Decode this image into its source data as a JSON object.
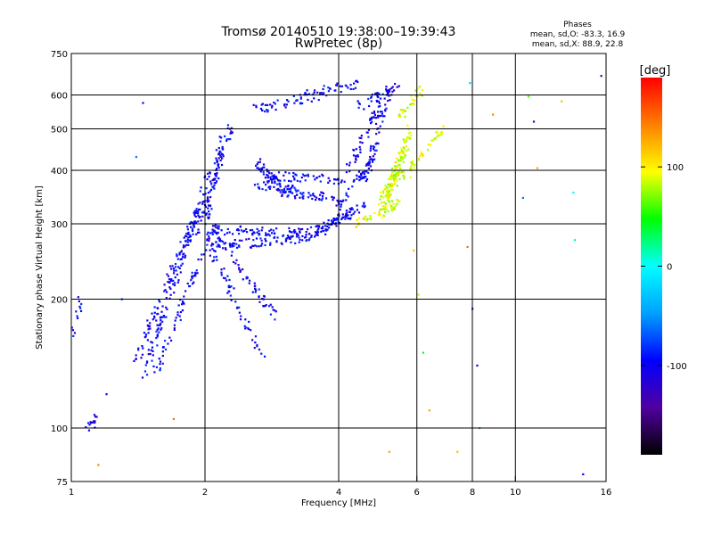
{
  "chart_data": {
    "type": "scatter",
    "title": "Tromsø 20140510 19:38:00–19:39:43",
    "subtitle": "RwPretec (8p)",
    "annotation_title": "Phases",
    "annotation_lines": [
      "mean, sd,O: -83.3, 16.9",
      "mean, sd,X: 88.9, 22.8"
    ],
    "xlabel": "Frequency [MHz]",
    "ylabel": "Stationary phase Virtual Height [km]",
    "x_scale": "log",
    "y_scale": "log",
    "xlim": [
      1,
      16
    ],
    "ylim": [
      75,
      750
    ],
    "x_ticks": [
      1,
      2,
      4,
      6,
      8,
      10,
      16
    ],
    "x_tick_labels": [
      "1",
      "2",
      "4",
      "6",
      "8",
      "10",
      "16"
    ],
    "y_ticks": [
      75,
      100,
      200,
      300,
      400,
      500,
      600,
      750
    ],
    "y_tick_labels": [
      "75",
      "100",
      "200",
      "300",
      "400",
      "500",
      "600",
      "750"
    ],
    "x_gridlines": [
      2,
      4,
      6,
      8,
      10
    ],
    "y_gridlines": [
      100,
      200,
      300,
      400,
      500,
      600
    ],
    "grid": true,
    "colorbar": {
      "label": "[deg]",
      "range": [
        -190,
        190
      ],
      "ticks": [
        100,
        0,
        -100
      ],
      "tick_labels": [
        "100",
        "0",
        "-100"
      ],
      "colors": [
        "#000000",
        "#5000a0",
        "#0000ff",
        "#00a0ff",
        "#00ffff",
        "#00ff00",
        "#ffff00",
        "#ff8000",
        "#ff0000"
      ]
    },
    "series": [
      {
        "polarity": "O",
        "color_value": -100,
        "traces": [
          {
            "f0": 1.45,
            "f1": 2.05,
            "h0": 130,
            "h1": 400,
            "n": 40
          },
          {
            "f0": 1.4,
            "f1": 1.95,
            "h0": 145,
            "h1": 330,
            "n": 30
          },
          {
            "f0": 1.55,
            "f1": 2.1,
            "h0": 135,
            "h1": 300,
            "n": 25
          },
          {
            "f0": 2.05,
            "f1": 2.9,
            "h0": 300,
            "h1": 180,
            "n": 20
          },
          {
            "f0": 2.0,
            "f1": 2.7,
            "h0": 280,
            "h1": 145,
            "n": 18
          },
          {
            "f0": 1.9,
            "f1": 2.3,
            "h0": 280,
            "h1": 520,
            "n": 22
          },
          {
            "f0": 2.0,
            "f1": 2.2,
            "h0": 300,
            "h1": 480,
            "n": 16
          },
          {
            "f0": 2.05,
            "f1": 3.5,
            "h0": 265,
            "h1": 280,
            "n": 28
          },
          {
            "f0": 3.5,
            "f1": 4.3,
            "h0": 280,
            "h1": 320,
            "n": 16
          },
          {
            "f0": 2.1,
            "f1": 3.4,
            "h0": 290,
            "h1": 285,
            "n": 24
          },
          {
            "f0": 3.4,
            "f1": 4.6,
            "h0": 285,
            "h1": 330,
            "n": 18
          },
          {
            "f0": 2.6,
            "f1": 3.0,
            "h0": 420,
            "h1": 355,
            "n": 14
          },
          {
            "f0": 3.0,
            "f1": 3.9,
            "h0": 355,
            "h1": 345,
            "n": 16
          },
          {
            "f0": 2.6,
            "f1": 3.2,
            "h0": 370,
            "h1": 360,
            "n": 12
          },
          {
            "f0": 2.7,
            "f1": 4.1,
            "h0": 390,
            "h1": 380,
            "n": 20
          },
          {
            "f0": 4.0,
            "f1": 4.8,
            "h0": 330,
            "h1": 430,
            "n": 16
          },
          {
            "f0": 4.2,
            "f1": 5.0,
            "h0": 400,
            "h1": 580,
            "n": 18
          },
          {
            "f0": 4.6,
            "f1": 5.2,
            "h0": 380,
            "h1": 620,
            "n": 18
          },
          {
            "f0": 4.4,
            "f1": 5.5,
            "h0": 560,
            "h1": 640,
            "n": 12
          },
          {
            "f0": 2.6,
            "f1": 3.6,
            "h0": 555,
            "h1": 600,
            "n": 16
          },
          {
            "f0": 3.4,
            "f1": 4.4,
            "h0": 600,
            "h1": 640,
            "n": 12
          },
          {
            "f0": 1.08,
            "f1": 1.15,
            "h0": 100,
            "h1": 106,
            "n": 5
          },
          {
            "f0": 1.0,
            "f1": 1.05,
            "h0": 165,
            "h1": 200,
            "n": 5
          }
        ]
      },
      {
        "polarity": "X",
        "color_value": 90,
        "traces": [
          {
            "f0": 4.4,
            "f1": 5.6,
            "h0": 300,
            "h1": 340,
            "n": 18
          },
          {
            "f0": 5.0,
            "f1": 5.7,
            "h0": 340,
            "h1": 460,
            "n": 20
          },
          {
            "f0": 5.2,
            "f1": 5.8,
            "h0": 360,
            "h1": 500,
            "n": 18
          },
          {
            "f0": 5.6,
            "f1": 6.8,
            "h0": 380,
            "h1": 500,
            "n": 14
          },
          {
            "f0": 5.5,
            "f1": 6.2,
            "h0": 540,
            "h1": 620,
            "n": 10
          },
          {
            "f0": 5.0,
            "f1": 5.6,
            "h0": 330,
            "h1": 410,
            "n": 12
          }
        ]
      }
    ],
    "isolated_points": [
      {
        "f": 1.45,
        "h": 575,
        "v": -95
      },
      {
        "f": 1.4,
        "h": 430,
        "v": -60
      },
      {
        "f": 1.3,
        "h": 200,
        "v": -80
      },
      {
        "f": 1.2,
        "h": 120,
        "v": -110
      },
      {
        "f": 5.9,
        "h": 260,
        "v": 120
      },
      {
        "f": 6.05,
        "h": 205,
        "v": 80
      },
      {
        "f": 6.2,
        "h": 150,
        "v": 40
      },
      {
        "f": 7.8,
        "h": 265,
        "v": 150
      },
      {
        "f": 7.9,
        "h": 640,
        "v": -20
      },
      {
        "f": 8.0,
        "h": 190,
        "v": -110
      },
      {
        "f": 8.2,
        "h": 140,
        "v": -100
      },
      {
        "f": 8.3,
        "h": 100,
        "v": 50
      },
      {
        "f": 8.9,
        "h": 540,
        "v": 140
      },
      {
        "f": 10.4,
        "h": 345,
        "v": -60
      },
      {
        "f": 10.7,
        "h": 595,
        "v": 60
      },
      {
        "f": 11.0,
        "h": 520,
        "v": -120
      },
      {
        "f": 11.2,
        "h": 405,
        "v": 130
      },
      {
        "f": 12.7,
        "h": 580,
        "v": 120
      },
      {
        "f": 13.5,
        "h": 355,
        "v": 0
      },
      {
        "f": 13.6,
        "h": 275,
        "v": 20
      },
      {
        "f": 14.2,
        "h": 78,
        "v": -100
      },
      {
        "f": 15.6,
        "h": 665,
        "v": -140
      },
      {
        "f": 5.2,
        "h": 88,
        "v": 130
      },
      {
        "f": 7.4,
        "h": 88,
        "v": 120
      },
      {
        "f": 1.15,
        "h": 82,
        "v": 140
      },
      {
        "f": 1.7,
        "h": 105,
        "v": 150
      },
      {
        "f": 6.4,
        "h": 110,
        "v": 130
      }
    ]
  }
}
